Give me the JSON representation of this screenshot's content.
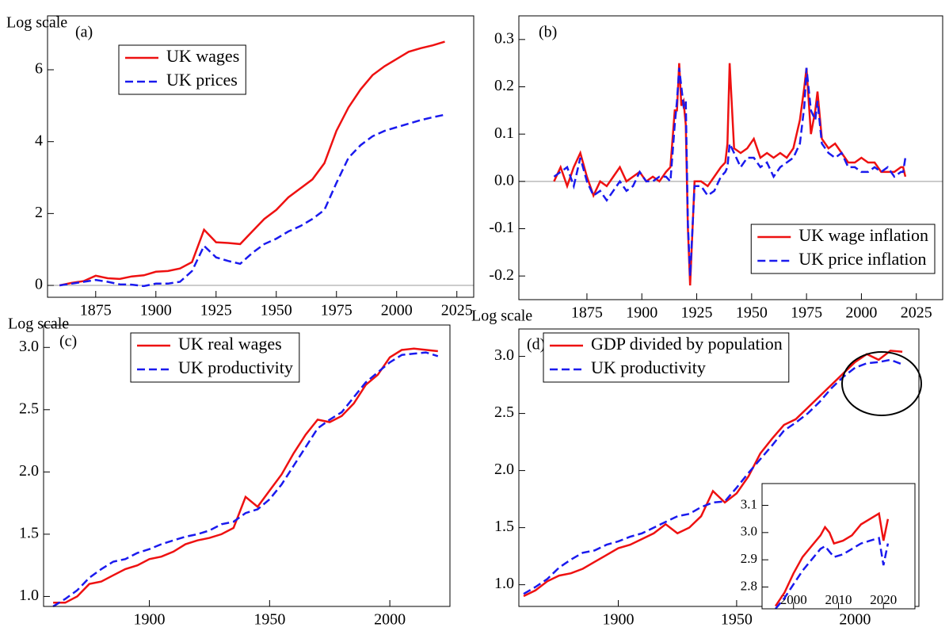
{
  "chart_data": [
    {
      "type": "line",
      "label": "(a)",
      "annotation": "Log scale",
      "legend": "upper left",
      "x": [
        1860,
        1865,
        1870,
        1875,
        1880,
        1885,
        1890,
        1895,
        1900,
        1905,
        1910,
        1915,
        1920,
        1925,
        1930,
        1935,
        1940,
        1945,
        1950,
        1955,
        1960,
        1965,
        1970,
        1975,
        1980,
        1985,
        1990,
        1995,
        2000,
        2005,
        2010,
        2015,
        2020
      ],
      "series": [
        {
          "name": "UK wages",
          "color": "#ee1111",
          "linestyle": "solid",
          "values": [
            0.0,
            0.07,
            0.12,
            0.27,
            0.2,
            0.18,
            0.25,
            0.28,
            0.38,
            0.4,
            0.47,
            0.65,
            1.55,
            1.2,
            1.18,
            1.15,
            1.5,
            1.85,
            2.1,
            2.45,
            2.7,
            2.95,
            3.4,
            4.3,
            4.95,
            5.45,
            5.85,
            6.1,
            6.3,
            6.5,
            6.6,
            6.68,
            6.78
          ]
        },
        {
          "name": "UK prices",
          "color": "#1a1aee",
          "linestyle": "dashed",
          "values": [
            0.0,
            0.05,
            0.1,
            0.15,
            0.1,
            0.03,
            0.02,
            -0.02,
            0.05,
            0.05,
            0.1,
            0.4,
            1.1,
            0.78,
            0.68,
            0.6,
            0.9,
            1.15,
            1.3,
            1.5,
            1.65,
            1.85,
            2.1,
            2.85,
            3.55,
            3.9,
            4.15,
            4.3,
            4.4,
            4.5,
            4.6,
            4.68,
            4.75
          ]
        }
      ],
      "xlim": [
        1855,
        2032
      ],
      "xticks": [
        1875,
        1900,
        1925,
        1950,
        1975,
        2000,
        2025
      ],
      "ylim": [
        -0.33,
        7.5
      ],
      "yticks": [
        0,
        2,
        4,
        6
      ],
      "hline": 0
    },
    {
      "type": "line",
      "label": "(b)",
      "legend": "lower right",
      "x": [
        1860,
        1863,
        1866,
        1869,
        1872,
        1875,
        1878,
        1881,
        1884,
        1887,
        1890,
        1893,
        1896,
        1899,
        1902,
        1905,
        1908,
        1911,
        1913,
        1915,
        1916,
        1917,
        1918,
        1919,
        1920,
        1921,
        1922,
        1924,
        1927,
        1930,
        1933,
        1936,
        1938,
        1939,
        1940,
        1942,
        1945,
        1948,
        1951,
        1954,
        1957,
        1960,
        1963,
        1966,
        1969,
        1972,
        1974,
        1975,
        1977,
        1979,
        1980,
        1982,
        1985,
        1988,
        1991,
        1994,
        1997,
        2000,
        2003,
        2006,
        2009,
        2012,
        2015,
        2018,
        2019,
        2020
      ],
      "series": [
        {
          "name": "UK wage inflation",
          "color": "#ee1111",
          "linestyle": "solid",
          "values": [
            0.0,
            0.03,
            -0.01,
            0.03,
            0.06,
            0.01,
            -0.03,
            0.0,
            -0.01,
            0.01,
            0.03,
            0.0,
            0.01,
            0.02,
            0.0,
            0.01,
            0.0,
            0.02,
            0.03,
            0.15,
            0.15,
            0.25,
            0.16,
            0.17,
            0.12,
            -0.1,
            -0.22,
            0.0,
            0.0,
            -0.01,
            0.01,
            0.03,
            0.04,
            0.08,
            0.25,
            0.07,
            0.06,
            0.07,
            0.09,
            0.05,
            0.06,
            0.05,
            0.06,
            0.05,
            0.07,
            0.13,
            0.2,
            0.24,
            0.1,
            0.15,
            0.19,
            0.09,
            0.07,
            0.08,
            0.06,
            0.04,
            0.04,
            0.05,
            0.04,
            0.04,
            0.02,
            0.02,
            0.02,
            0.03,
            0.03,
            0.01
          ]
        },
        {
          "name": "UK price inflation",
          "color": "#1a1aee",
          "linestyle": "dashed",
          "values": [
            0.01,
            0.02,
            0.03,
            -0.01,
            0.05,
            0.0,
            -0.03,
            -0.02,
            -0.04,
            -0.02,
            0.0,
            -0.02,
            -0.01,
            0.02,
            0.0,
            0.0,
            0.01,
            0.01,
            0.0,
            0.12,
            0.17,
            0.24,
            0.2,
            0.16,
            0.17,
            -0.09,
            -0.2,
            -0.01,
            -0.01,
            -0.03,
            -0.02,
            0.01,
            0.02,
            0.03,
            0.08,
            0.06,
            0.03,
            0.05,
            0.05,
            0.03,
            0.04,
            0.01,
            0.03,
            0.04,
            0.05,
            0.08,
            0.16,
            0.24,
            0.15,
            0.13,
            0.17,
            0.08,
            0.06,
            0.05,
            0.06,
            0.03,
            0.03,
            0.02,
            0.02,
            0.03,
            0.02,
            0.03,
            0.01,
            0.02,
            0.02,
            0.05
          ]
        }
      ],
      "xlim": [
        1844,
        2037
      ],
      "xticks": [
        1875,
        1900,
        1925,
        1950,
        1975,
        2000,
        2025
      ],
      "ylim": [
        -0.25,
        0.35
      ],
      "yticks": [
        -0.2,
        -0.1,
        {
          "value": 0,
          "label": "0.0"
        },
        0.1,
        0.2,
        0.3
      ],
      "hline": 0
    },
    {
      "type": "line",
      "label": "(c)",
      "annotation": "Log scale",
      "legend": "upper left",
      "x": [
        1860,
        1865,
        1870,
        1875,
        1880,
        1885,
        1890,
        1895,
        1900,
        1905,
        1910,
        1915,
        1920,
        1925,
        1930,
        1935,
        1940,
        1945,
        1950,
        1955,
        1960,
        1965,
        1970,
        1975,
        1980,
        1985,
        1990,
        1995,
        2000,
        2005,
        2010,
        2015,
        2020
      ],
      "series": [
        {
          "name": "UK real wages",
          "color": "#ee1111",
          "linestyle": "solid",
          "values": [
            0.95,
            0.95,
            1.0,
            1.1,
            1.12,
            1.17,
            1.22,
            1.25,
            1.3,
            1.32,
            1.36,
            1.42,
            1.45,
            1.47,
            1.5,
            1.55,
            1.8,
            1.72,
            1.85,
            1.98,
            2.15,
            2.3,
            2.42,
            2.4,
            2.45,
            2.55,
            2.7,
            2.78,
            2.92,
            2.98,
            2.99,
            2.98,
            2.97
          ]
        },
        {
          "name": "UK productivity",
          "color": "#1a1aee",
          "linestyle": "dashed",
          "values": [
            0.92,
            0.98,
            1.05,
            1.15,
            1.22,
            1.28,
            1.3,
            1.35,
            1.38,
            1.42,
            1.45,
            1.48,
            1.5,
            1.53,
            1.58,
            1.6,
            1.67,
            1.7,
            1.78,
            1.9,
            2.05,
            2.2,
            2.35,
            2.42,
            2.48,
            2.6,
            2.72,
            2.8,
            2.88,
            2.94,
            2.95,
            2.96,
            2.93
          ]
        }
      ],
      "xlim": [
        1856,
        2025
      ],
      "xticks": [
        1900,
        1950,
        2000
      ],
      "ylim": [
        0.92,
        3.18
      ],
      "yticks": [
        {
          "value": 1,
          "label": "1.0"
        },
        1.5,
        {
          "value": 2,
          "label": "2.0"
        },
        2.5,
        {
          "value": 3,
          "label": "3.0"
        }
      ]
    },
    {
      "type": "line",
      "label": "(d)",
      "annotation": "Log scale",
      "legend": "upper left",
      "x": [
        1860,
        1865,
        1870,
        1875,
        1880,
        1885,
        1890,
        1895,
        1900,
        1905,
        1910,
        1915,
        1920,
        1925,
        1930,
        1935,
        1940,
        1945,
        1950,
        1955,
        1960,
        1965,
        1970,
        1975,
        1980,
        1985,
        1990,
        1995,
        2000,
        2005,
        2010,
        2015,
        2020
      ],
      "series": [
        {
          "name": "GDP divided by population",
          "color": "#ee1111",
          "linestyle": "solid",
          "values": [
            0.9,
            0.95,
            1.03,
            1.08,
            1.1,
            1.14,
            1.2,
            1.26,
            1.32,
            1.35,
            1.4,
            1.45,
            1.53,
            1.45,
            1.5,
            1.6,
            1.82,
            1.72,
            1.8,
            1.95,
            2.15,
            2.28,
            2.4,
            2.45,
            2.55,
            2.65,
            2.75,
            2.85,
            2.95,
            3.02,
            2.97,
            3.05,
            3.04
          ]
        },
        {
          "name": "UK productivity",
          "color": "#1a1aee",
          "linestyle": "dashed",
          "values": [
            0.92,
            0.98,
            1.05,
            1.15,
            1.22,
            1.28,
            1.3,
            1.35,
            1.38,
            1.42,
            1.45,
            1.5,
            1.55,
            1.6,
            1.62,
            1.68,
            1.72,
            1.73,
            1.85,
            1.98,
            2.1,
            2.22,
            2.35,
            2.42,
            2.5,
            2.6,
            2.72,
            2.82,
            2.9,
            2.94,
            2.95,
            2.97,
            2.93
          ]
        }
      ],
      "xlim": [
        1858,
        2027
      ],
      "xticks": [
        1900,
        1950,
        2000
      ],
      "ylim": [
        0.81,
        3.24
      ],
      "yticks": [
        {
          "value": 1,
          "label": "1.0"
        },
        1.5,
        {
          "value": 2,
          "label": "2.0"
        },
        2.5,
        {
          "value": 3,
          "label": "3.0"
        }
      ]
    },
    {
      "type": "line",
      "x": [
        1996,
        1998,
        2000,
        2002,
        2004,
        2006,
        2007,
        2008,
        2009,
        2011,
        2013,
        2015,
        2017,
        2019,
        2020,
        2021
      ],
      "series": [
        {
          "color": "#ee1111",
          "linestyle": "solid",
          "values": [
            2.73,
            2.78,
            2.85,
            2.91,
            2.95,
            2.99,
            3.02,
            3.0,
            2.96,
            2.97,
            2.99,
            3.03,
            3.05,
            3.07,
            2.97,
            3.05
          ]
        },
        {
          "color": "#1a1aee",
          "linestyle": "dashed",
          "values": [
            2.72,
            2.76,
            2.81,
            2.86,
            2.9,
            2.94,
            2.95,
            2.93,
            2.91,
            2.92,
            2.94,
            2.96,
            2.97,
            2.98,
            2.88,
            2.96
          ]
        }
      ],
      "xlim": [
        1993,
        2027
      ],
      "xticks": [
        2000,
        2010,
        2020
      ],
      "ylim": [
        2.72,
        3.18
      ],
      "yticks": [
        2.8,
        2.9,
        {
          "value": 3,
          "label": "3.0"
        },
        3.1
      ]
    }
  ]
}
